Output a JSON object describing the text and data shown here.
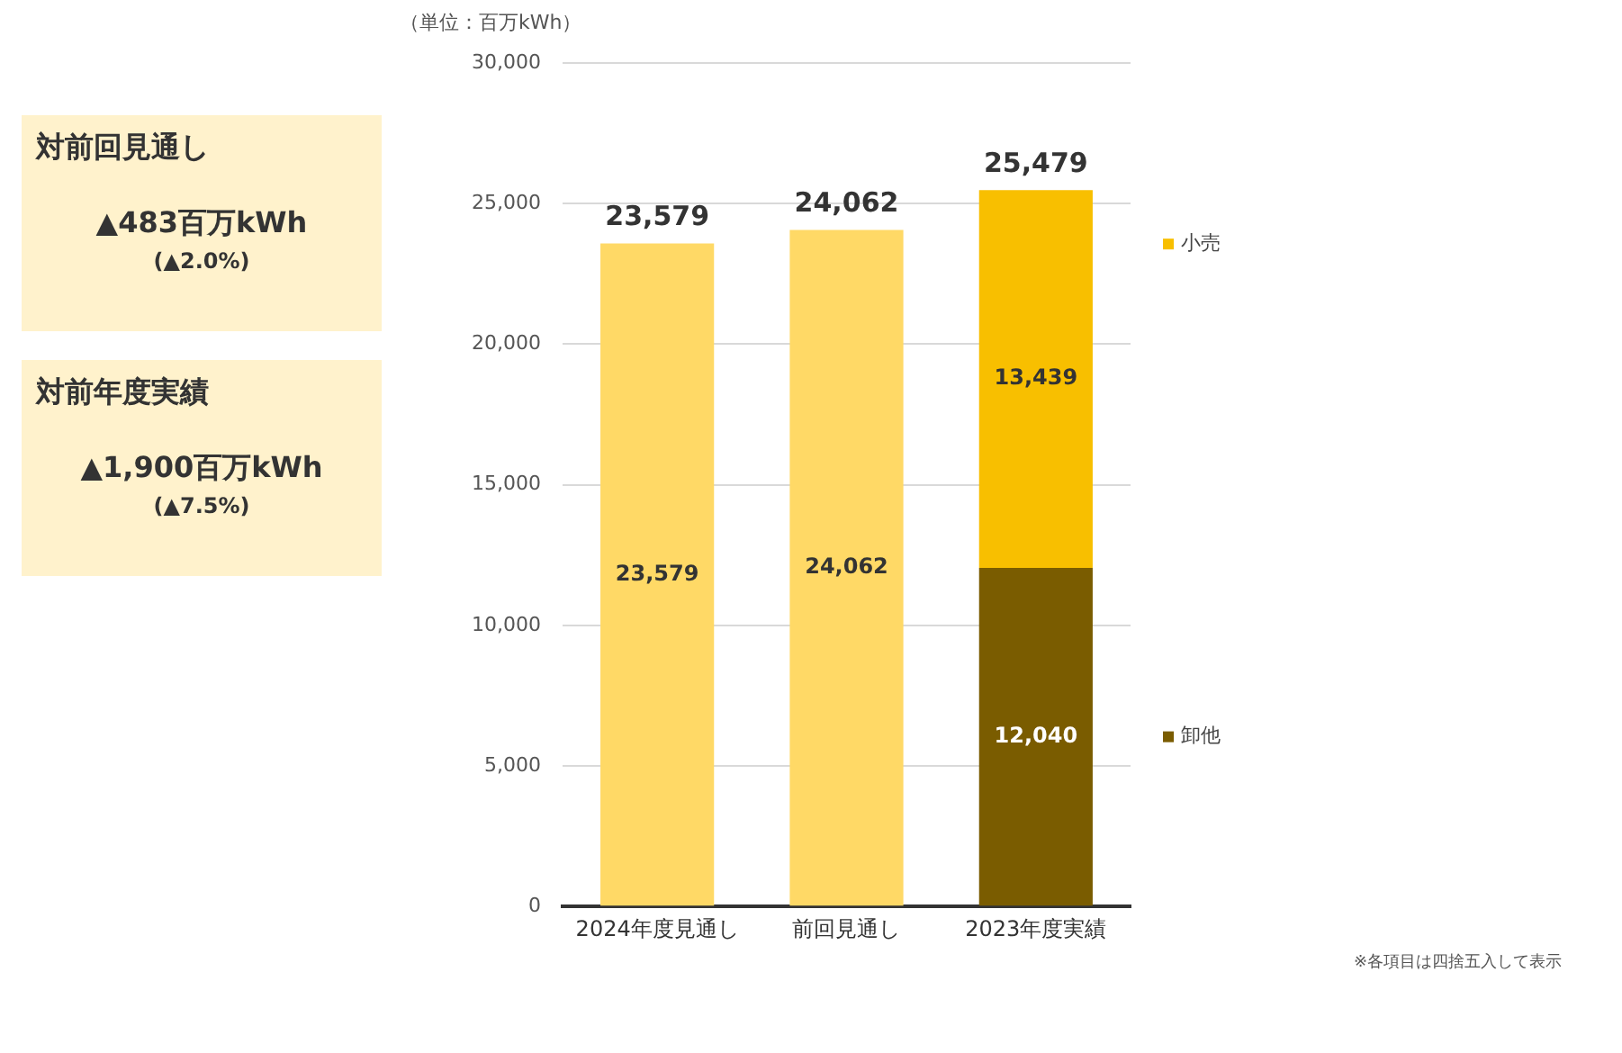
{
  "chart_data": {
    "type": "bar",
    "stacked": true,
    "ylabel": "（単位：百万kWh）",
    "categories": [
      "2024年度見通し",
      "前回見通し",
      "2023年度実績"
    ],
    "series": [
      {
        "name": "卸他",
        "color": "#7a5c00",
        "values": [
          null,
          null,
          12040
        ],
        "value_labels": [
          null,
          null,
          "12,040"
        ]
      },
      {
        "name": "小売",
        "color": "#f8bf00",
        "values": [
          null,
          null,
          13439
        ],
        "value_labels": [
          null,
          null,
          "13,439"
        ]
      },
      {
        "color": "#ffd966",
        "values": [
          23579,
          24062,
          null
        ],
        "value_labels": [
          "23,579",
          "24,062",
          null
        ]
      }
    ],
    "totals": [
      "23,579",
      "24,062",
      "25,479"
    ],
    "ylim": [
      0,
      30000
    ],
    "yticks": [
      0,
      {
        "value": 5000,
        "label": "5,000"
      },
      {
        "value": 10000,
        "label": "10,000"
      },
      {
        "value": 15000,
        "label": "15,000"
      },
      {
        "value": 20000,
        "label": "20,000"
      },
      {
        "value": 25000,
        "label": "25,000"
      },
      {
        "value": 30000,
        "label": "30,000"
      }
    ],
    "grid": "y",
    "legend": "right",
    "annotations": [
      "対前回見通し",
      "▲483百万kWh",
      "(▲2.0%)",
      "対前年度実績",
      "▲1,900百万kWh",
      "(▲7.5%)",
      "※各項目は四捨五入して表示"
    ]
  }
}
